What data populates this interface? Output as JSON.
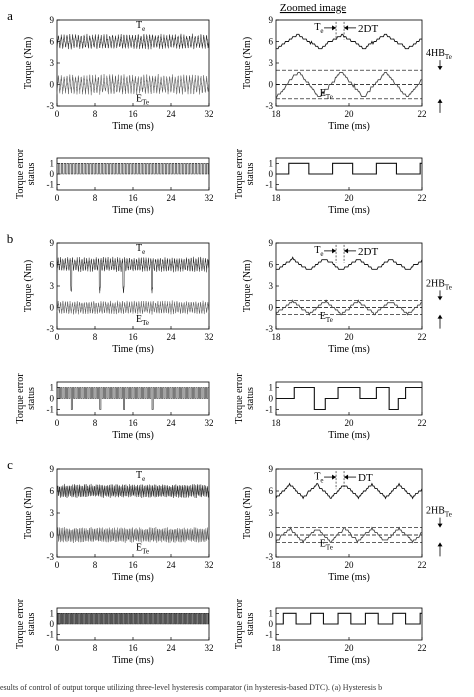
{
  "header": {
    "zoomed_title": "Zoomed image"
  },
  "caption_fragment": "esults of control of output torque utilizing three-level hysteresis comparator (in hysteresis-based DTC). (a) Hysteresis b",
  "chart_data": [
    {
      "panel": "a",
      "type": "line",
      "view": "full",
      "xlabel": "Time (ms)",
      "ylabel": "Torque (Nm)",
      "xlim": [
        0,
        32
      ],
      "ylim": [
        -3,
        9
      ],
      "xticks": [
        0,
        8,
        16,
        24,
        32
      ],
      "yticks": [
        -3,
        0,
        3,
        6,
        9
      ],
      "annotations": [
        "T_e",
        "E_Te"
      ],
      "series": [
        {
          "name": "T_e",
          "mean": 6.0,
          "ripple": 0.9,
          "period_ms": 0.6
        },
        {
          "name": "E_Te",
          "mean": 0.0,
          "ripple": 1.2,
          "period_ms": 0.6
        }
      ]
    },
    {
      "panel": "a",
      "type": "line",
      "view": "zoomed",
      "xlabel": "Time (ms)",
      "ylabel": "Torque (Nm)",
      "xlim": [
        18,
        22
      ],
      "ylim": [
        -3,
        9
      ],
      "xticks": [
        18,
        20,
        22
      ],
      "yticks": [
        -3,
        0,
        3,
        6,
        9
      ],
      "annotations": [
        "T_e",
        "2DT",
        "E_Te",
        "4HB_Te"
      ],
      "hysteresis_lines": [
        2,
        0,
        -2
      ],
      "series": [
        {
          "name": "T_e",
          "mean": 6.0,
          "ripple": 1.0,
          "period_ms": 1.2
        },
        {
          "name": "E_Te",
          "mean": 0.0,
          "ripple": 1.8,
          "period_ms": 1.2
        }
      ]
    },
    {
      "panel": "a",
      "type": "line",
      "view": "full-status",
      "xlabel": "Time (ms)",
      "ylabel": "Torque error status",
      "xlim": [
        0,
        32
      ],
      "ylim": [
        -1.5,
        1.5
      ],
      "xticks": [
        0,
        8,
        16,
        24,
        32
      ],
      "yticks": [
        -1,
        0,
        1
      ],
      "series": [
        {
          "levels": [
            0,
            1
          ],
          "period_ms": 0.6
        }
      ]
    },
    {
      "panel": "a",
      "type": "line",
      "view": "zoomed-status",
      "xlabel": "Time (ms)",
      "ylabel": "Torque error status",
      "xlim": [
        18,
        22
      ],
      "ylim": [
        -1.5,
        1.5
      ],
      "xticks": [
        18,
        20,
        22
      ],
      "yticks": [
        -1,
        0,
        1
      ],
      "steps": [
        [
          18,
          0
        ],
        [
          18.35,
          1
        ],
        [
          18.9,
          0
        ],
        [
          19.55,
          1
        ],
        [
          20.1,
          0
        ],
        [
          20.75,
          1
        ],
        [
          21.3,
          0
        ],
        [
          21.95,
          1
        ],
        [
          22,
          1
        ]
      ]
    },
    {
      "panel": "b",
      "type": "line",
      "view": "full",
      "xlabel": "Time (ms)",
      "ylabel": "Torque (Nm)",
      "xlim": [
        0,
        32
      ],
      "ylim": [
        -3,
        9
      ],
      "xticks": [
        0,
        8,
        16,
        24,
        32
      ],
      "yticks": [
        -3,
        0,
        3,
        6,
        9
      ],
      "annotations": [
        "T_e",
        "E_Te"
      ],
      "series": [
        {
          "name": "T_e",
          "mean": 6.0,
          "ripple": 0.9,
          "period_ms": 0.5
        },
        {
          "name": "E_Te",
          "mean": 0.0,
          "ripple": 0.8,
          "period_ms": 0.5
        }
      ],
      "spikes_ms": [
        3,
        9,
        14,
        20
      ]
    },
    {
      "panel": "b",
      "type": "line",
      "view": "zoomed",
      "xlabel": "Time (ms)",
      "ylabel": "Torque (Nm)",
      "xlim": [
        18,
        22
      ],
      "ylim": [
        -3,
        9
      ],
      "xticks": [
        18,
        20,
        22
      ],
      "yticks": [
        -3,
        0,
        3,
        6,
        9
      ],
      "annotations": [
        "T_e",
        "2DT",
        "E_Te",
        "2HB_Te"
      ],
      "hysteresis_lines": [
        1,
        0,
        -1
      ],
      "series": [
        {
          "name": "T_e",
          "mean": 6.0,
          "ripple": 0.8,
          "period_ms": 0.9
        },
        {
          "name": "E_Te",
          "mean": 0.0,
          "ripple": 0.9,
          "period_ms": 0.9
        }
      ]
    },
    {
      "panel": "b",
      "type": "line",
      "view": "full-status",
      "xlabel": "Time (ms)",
      "ylabel": "Torque error status",
      "xlim": [
        0,
        32
      ],
      "ylim": [
        -1.5,
        1.5
      ],
      "xticks": [
        0,
        8,
        16,
        24,
        32
      ],
      "yticks": [
        -1,
        0,
        1
      ],
      "series": [
        {
          "levels": [
            0,
            1
          ],
          "period_ms": 0.5,
          "drops_to_minus1_ms": [
            3,
            9,
            14,
            20
          ]
        }
      ]
    },
    {
      "panel": "b",
      "type": "line",
      "view": "zoomed-status",
      "xlabel": "Time (ms)",
      "ylabel": "Torque error status",
      "xlim": [
        18,
        22
      ],
      "ylim": [
        -1.5,
        1.5
      ],
      "xticks": [
        18,
        20,
        22
      ],
      "yticks": [
        -1,
        0,
        1
      ],
      "steps": [
        [
          18,
          0
        ],
        [
          18.5,
          1
        ],
        [
          19,
          1
        ],
        [
          19.05,
          -1
        ],
        [
          19.35,
          0
        ],
        [
          19.7,
          1
        ],
        [
          20.3,
          0
        ],
        [
          20.75,
          1
        ],
        [
          21.1,
          -1
        ],
        [
          21.35,
          0
        ],
        [
          21.55,
          1
        ],
        [
          22,
          1
        ]
      ]
    },
    {
      "panel": "c",
      "type": "line",
      "view": "full",
      "xlabel": "Time (ms)",
      "ylabel": "Torque (Nm)",
      "xlim": [
        0,
        32
      ],
      "ylim": [
        -3,
        9
      ],
      "xticks": [
        0,
        8,
        16,
        24,
        32
      ],
      "yticks": [
        -3,
        0,
        3,
        6,
        9
      ],
      "annotations": [
        "T_e",
        "E_Te"
      ],
      "series": [
        {
          "name": "T_e",
          "mean": 6.0,
          "ripple": 0.8,
          "period_ms": 0.35
        },
        {
          "name": "E_Te",
          "mean": 0.0,
          "ripple": 0.9,
          "period_ms": 0.35
        }
      ]
    },
    {
      "panel": "c",
      "type": "line",
      "view": "zoomed",
      "xlabel": "Time (ms)",
      "ylabel": "Torque (Nm)",
      "xlim": [
        18,
        22
      ],
      "ylim": [
        -3,
        9
      ],
      "xticks": [
        18,
        20,
        22
      ],
      "yticks": [
        -3,
        0,
        3,
        6,
        9
      ],
      "annotations": [
        "T_e",
        "DT",
        "E_Te",
        "2HB_Te"
      ],
      "hysteresis_lines": [
        1,
        0,
        -1
      ],
      "series": [
        {
          "name": "T_e",
          "mean": 6.0,
          "ripple": 0.9,
          "period_ms": 0.75
        },
        {
          "name": "E_Te",
          "mean": 0.0,
          "ripple": 0.9,
          "period_ms": 0.75
        }
      ]
    },
    {
      "panel": "c",
      "type": "line",
      "view": "full-status",
      "xlabel": "Time (ms)",
      "ylabel": "Torque error status",
      "xlim": [
        0,
        32
      ],
      "ylim": [
        -1.5,
        1.5
      ],
      "xticks": [
        0,
        8,
        16,
        24,
        32
      ],
      "yticks": [
        -1,
        0,
        1
      ],
      "series": [
        {
          "levels": [
            0,
            1
          ],
          "period_ms": 0.35
        }
      ]
    },
    {
      "panel": "c",
      "type": "line",
      "view": "zoomed-status",
      "xlabel": "Time (ms)",
      "ylabel": "Torque error status",
      "xlim": [
        18,
        22
      ],
      "ylim": [
        -1.5,
        1.5
      ],
      "xticks": [
        18,
        20,
        22
      ],
      "yticks": [
        -1,
        0,
        1
      ],
      "steps": [
        [
          18,
          0
        ],
        [
          18.2,
          1
        ],
        [
          18.55,
          0
        ],
        [
          18.95,
          1
        ],
        [
          19.3,
          0
        ],
        [
          19.7,
          1
        ],
        [
          20.05,
          0
        ],
        [
          20.45,
          1
        ],
        [
          20.8,
          0
        ],
        [
          21.2,
          1
        ],
        [
          21.55,
          0
        ],
        [
          21.95,
          1
        ],
        [
          22,
          1
        ]
      ]
    }
  ]
}
